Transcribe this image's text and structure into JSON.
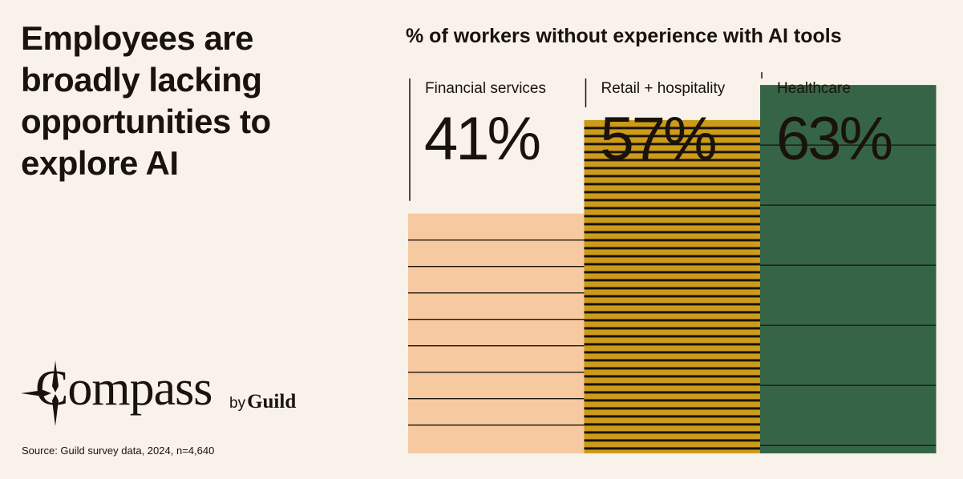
{
  "headline": "Employees are broadly lacking opportunities to explore AI",
  "logo": {
    "word": "Compass",
    "by": "by",
    "brand": "Guild",
    "icon": "compass-star-icon"
  },
  "source": "Source: Guild survey data, 2024, n=4,640",
  "chart_data": {
    "type": "bar",
    "title": "% of workers without experience with AI tools",
    "categories": [
      "Financial services",
      "Retail + hospitality",
      "Healthcare"
    ],
    "values": [
      41,
      57,
      63
    ],
    "value_labels": [
      "41%",
      "57%",
      "63%"
    ],
    "colors": [
      "#f6c9a0",
      "#cc9b18",
      "#366447"
    ],
    "ylim": [
      0,
      100
    ],
    "grid": false,
    "legend": "none"
  }
}
